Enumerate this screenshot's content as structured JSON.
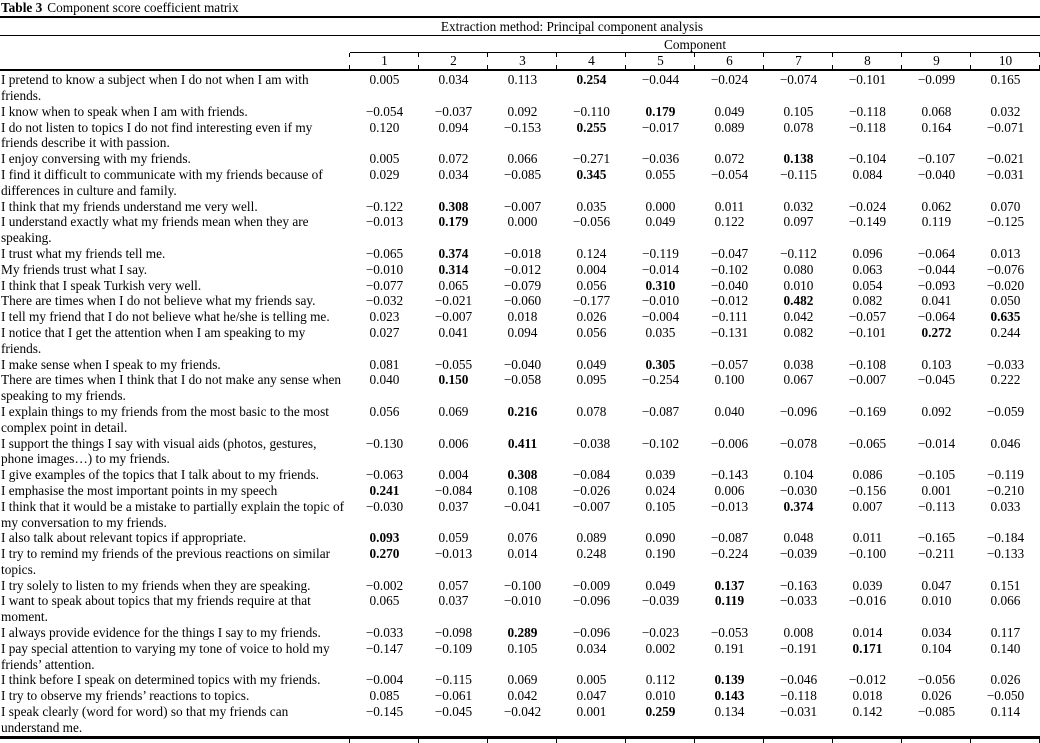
{
  "colors": {
    "ink": "#000000",
    "paper": "#ffffff"
  },
  "title": {
    "label": "Table 3",
    "text": "Component score coefficient matrix"
  },
  "table": {
    "extraction_header": "Extraction method: Principal component analysis",
    "group_header": "Component",
    "columns": [
      "1",
      "2",
      "3",
      "4",
      "5",
      "6",
      "7",
      "8",
      "9",
      "10"
    ],
    "rows": [
      {
        "statement": "I pretend to know a subject when I do not when I am with friends.",
        "values": [
          "0.005",
          "0.034",
          "0.113",
          "0.254",
          "−0.044",
          "−0.024",
          "−0.074",
          "−0.101",
          "−0.099",
          "0.165"
        ],
        "bold": [
          3
        ]
      },
      {
        "statement": "I know when to speak when I am with friends.",
        "values": [
          "−0.054",
          "−0.037",
          "0.092",
          "−0.110",
          "0.179",
          "0.049",
          "0.105",
          "−0.118",
          "0.068",
          "0.032"
        ],
        "bold": [
          4
        ]
      },
      {
        "statement": "I do not listen to topics I do not find interesting even if my friends describe it with passion.",
        "values": [
          "0.120",
          "0.094",
          "−0.153",
          "0.255",
          "−0.017",
          "0.089",
          "0.078",
          "−0.118",
          "0.164",
          "−0.071"
        ],
        "bold": [
          3
        ]
      },
      {
        "statement": "I enjoy conversing with my friends.",
        "values": [
          "0.005",
          "0.072",
          "0.066",
          "−0.271",
          "−0.036",
          "0.072",
          "0.138",
          "−0.104",
          "−0.107",
          "−0.021"
        ],
        "bold": [
          6
        ]
      },
      {
        "statement": "I find it difficult to communicate with my friends because of differences in culture and family.",
        "values": [
          "0.029",
          "0.034",
          "−0.085",
          "0.345",
          "0.055",
          "−0.054",
          "−0.115",
          "0.084",
          "−0.040",
          "−0.031"
        ],
        "bold": [
          3
        ]
      },
      {
        "statement": "I think that my friends understand me very well.",
        "values": [
          "−0.122",
          "0.308",
          "−0.007",
          "0.035",
          "0.000",
          "0.011",
          "0.032",
          "−0.024",
          "0.062",
          "0.070"
        ],
        "bold": [
          1
        ]
      },
      {
        "statement": "I understand exactly what my friends mean when they are speaking.",
        "values": [
          "−0.013",
          "0.179",
          "0.000",
          "−0.056",
          "0.049",
          "0.122",
          "0.097",
          "−0.149",
          "0.119",
          "−0.125"
        ],
        "bold": [
          1
        ]
      },
      {
        "statement": "I trust what my friends tell me.",
        "values": [
          "−0.065",
          "0.374",
          "−0.018",
          "0.124",
          "−0.119",
          "−0.047",
          "−0.112",
          "0.096",
          "−0.064",
          "0.013"
        ],
        "bold": [
          1
        ]
      },
      {
        "statement": "My friends trust what I say.",
        "values": [
          "−0.010",
          "0.314",
          "−0.012",
          "0.004",
          "−0.014",
          "−0.102",
          "0.080",
          "0.063",
          "−0.044",
          "−0.076"
        ],
        "bold": [
          1
        ]
      },
      {
        "statement": "I think that I speak Turkish very well.",
        "values": [
          "−0.077",
          "0.065",
          "−0.079",
          "0.056",
          "0.310",
          "−0.040",
          "0.010",
          "0.054",
          "−0.093",
          "−0.020"
        ],
        "bold": [
          4
        ]
      },
      {
        "statement": "There are times when I do not believe what my friends say.",
        "values": [
          "−0.032",
          "−0.021",
          "−0.060",
          "−0.177",
          "−0.010",
          "−0.012",
          "0.482",
          "0.082",
          "0.041",
          "0.050"
        ],
        "bold": [
          6
        ]
      },
      {
        "statement": "I tell my friend that I do not believe what he/she is telling me.",
        "values": [
          "0.023",
          "−0.007",
          "0.018",
          "0.026",
          "−0.004",
          "−0.111",
          "0.042",
          "−0.057",
          "−0.064",
          "0.635"
        ],
        "bold": [
          9
        ]
      },
      {
        "statement": "I notice that I get the attention when I am speaking to my friends.",
        "values": [
          "0.027",
          "0.041",
          "0.094",
          "0.056",
          "0.035",
          "−0.131",
          "0.082",
          "−0.101",
          "0.272",
          "0.244"
        ],
        "bold": [
          8
        ]
      },
      {
        "statement": "I make sense when I speak to my friends.",
        "values": [
          "0.081",
          "−0.055",
          "−0.040",
          "0.049",
          "0.305",
          "−0.057",
          "0.038",
          "−0.108",
          "0.103",
          "−0.033"
        ],
        "bold": [
          4
        ]
      },
      {
        "statement": "There are times when I think that I do not make any sense when speaking to my friends.",
        "values": [
          "0.040",
          "0.150",
          "−0.058",
          "0.095",
          "−0.254",
          "0.100",
          "0.067",
          "−0.007",
          "−0.045",
          "0.222"
        ],
        "bold": [
          1
        ]
      },
      {
        "statement": "I explain things to my friends from the most basic to the most complex point in detail.",
        "values": [
          "0.056",
          "0.069",
          "0.216",
          "0.078",
          "−0.087",
          "0.040",
          "−0.096",
          "−0.169",
          "0.092",
          "−0.059"
        ],
        "bold": [
          2
        ]
      },
      {
        "statement": "I support the things I say with visual aids (photos, gestures, phone images…) to my friends.",
        "values": [
          "−0.130",
          "0.006",
          "0.411",
          "−0.038",
          "−0.102",
          "−0.006",
          "−0.078",
          "−0.065",
          "−0.014",
          "0.046"
        ],
        "bold": [
          2
        ]
      },
      {
        "statement": "I give examples of the topics that I talk about to my friends.",
        "values": [
          "−0.063",
          "0.004",
          "0.308",
          "−0.084",
          "0.039",
          "−0.143",
          "0.104",
          "0.086",
          "−0.105",
          "−0.119"
        ],
        "bold": [
          2
        ]
      },
      {
        "statement": "I emphasise the most important points in my speech",
        "values": [
          "0.241",
          "−0.084",
          "0.108",
          "−0.026",
          "0.024",
          "0.006",
          "−0.030",
          "−0.156",
          "0.001",
          "−0.210"
        ],
        "bold": [
          0
        ]
      },
      {
        "statement": "I think that it would be a mistake to partially explain the topic of my conversation to my friends.",
        "values": [
          "−0.030",
          "0.037",
          "−0.041",
          "−0.007",
          "0.105",
          "−0.013",
          "0.374",
          "0.007",
          "−0.113",
          "0.033"
        ],
        "bold": [
          6
        ]
      },
      {
        "statement": "I also talk about relevant topics if appropriate.",
        "values": [
          "0.093",
          "0.059",
          "0.076",
          "0.089",
          "0.090",
          "−0.087",
          "0.048",
          "0.011",
          "−0.165",
          "−0.184"
        ],
        "bold": [
          0
        ]
      },
      {
        "statement": "I try to remind my friends of the previous reactions on similar topics.",
        "values": [
          "0.270",
          "−0.013",
          "0.014",
          "0.248",
          "0.190",
          "−0.224",
          "−0.039",
          "−0.100",
          "−0.211",
          "−0.133"
        ],
        "bold": [
          0
        ]
      },
      {
        "statement": "I try solely to listen to my friends when they are speaking.",
        "values": [
          "−0.002",
          "0.057",
          "−0.100",
          "−0.009",
          "0.049",
          "0.137",
          "−0.163",
          "0.039",
          "0.047",
          "0.151"
        ],
        "bold": [
          5
        ]
      },
      {
        "statement": "I want to speak about topics that my friends require at that moment.",
        "values": [
          "0.065",
          "0.037",
          "−0.010",
          "−0.096",
          "−0.039",
          "0.119",
          "−0.033",
          "−0.016",
          "0.010",
          "0.066"
        ],
        "bold": [
          5
        ]
      },
      {
        "statement": "I always provide evidence for the things I say to my friends.",
        "values": [
          "−0.033",
          "−0.098",
          "0.289",
          "−0.096",
          "−0.023",
          "−0.053",
          "0.008",
          "0.014",
          "0.034",
          "0.117"
        ],
        "bold": [
          2
        ]
      },
      {
        "statement": "I pay special attention to varying my tone of voice to hold my friends’ attention.",
        "values": [
          "−0.147",
          "−0.109",
          "0.105",
          "0.034",
          "0.002",
          "0.191",
          "−0.191",
          "0.171",
          "0.104",
          "0.140"
        ],
        "bold": [
          7
        ]
      },
      {
        "statement": "I think before I speak on determined topics with my friends.",
        "values": [
          "−0.004",
          "−0.115",
          "0.069",
          "0.005",
          "0.112",
          "0.139",
          "−0.046",
          "−0.012",
          "−0.056",
          "0.026"
        ],
        "bold": [
          5
        ]
      },
      {
        "statement": "I try to observe my friends’ reactions to topics.",
        "values": [
          "0.085",
          "−0.061",
          "0.042",
          "0.047",
          "0.010",
          "0.143",
          "−0.118",
          "0.018",
          "0.026",
          "−0.050"
        ],
        "bold": [
          5
        ]
      },
      {
        "statement": "I speak clearly (word for word) so that my friends can understand me.",
        "values": [
          "−0.145",
          "−0.045",
          "−0.042",
          "0.001",
          "0.259",
          "0.134",
          "−0.031",
          "0.142",
          "−0.085",
          "0.114"
        ],
        "bold": [
          4
        ]
      }
    ]
  }
}
